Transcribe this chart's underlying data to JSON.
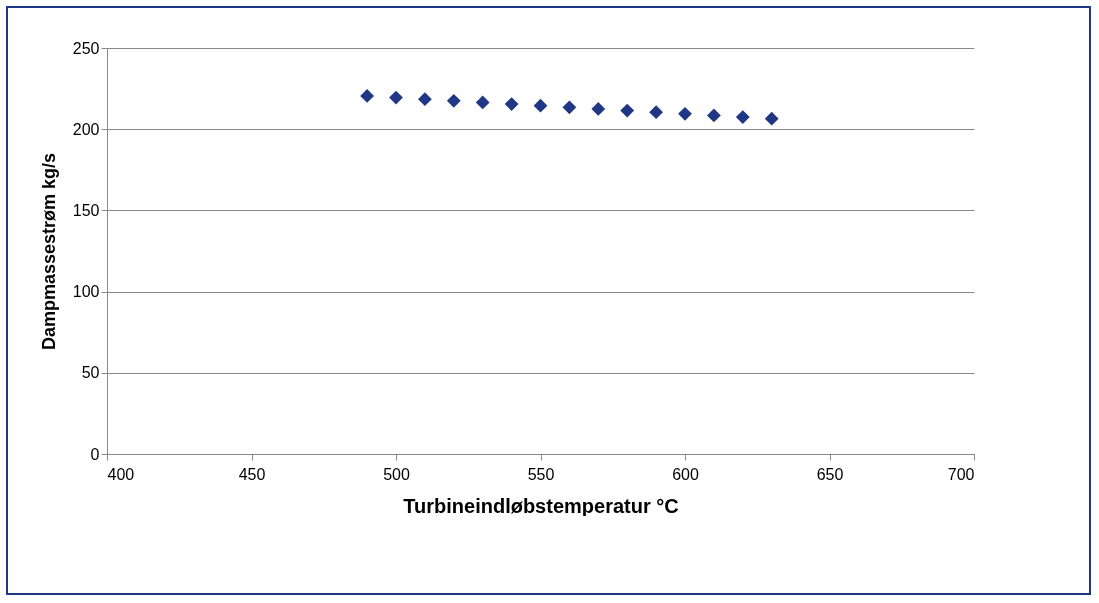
{
  "chart_data": {
    "type": "scatter",
    "xlabel": "Turbineindløbstemperatur °C",
    "ylabel": "Dampmassestrøm kg/s",
    "x": [
      490,
      500,
      510,
      520,
      530,
      540,
      550,
      560,
      570,
      580,
      590,
      600,
      610,
      620,
      630
    ],
    "series": [
      {
        "color": "#1f3784",
        "values": [
          220.5,
          219.5,
          218.5,
          217.5,
          216.5,
          215.5,
          214.5,
          213.5,
          212.5,
          211.5,
          210.5,
          209.5,
          208.5,
          207.5,
          206.5
        ]
      }
    ],
    "xlim": [
      400,
      700
    ],
    "xticks": [
      400,
      450,
      500,
      550,
      600,
      650,
      700
    ],
    "ylim": [
      0,
      250
    ],
    "yticks": [
      0,
      50,
      100,
      150,
      200,
      250
    ],
    "grid": "y",
    "marker": "diamond",
    "legend": false
  }
}
